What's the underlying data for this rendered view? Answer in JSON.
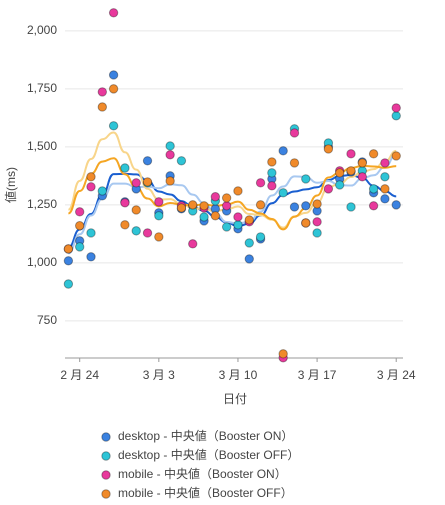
{
  "chart_data": {
    "type": "scatter",
    "y_label": "値(ms)",
    "x_label": "日付",
    "xlim": [
      -1.3,
      28.6
    ],
    "xticks": [
      {
        "value": 0,
        "label": "2 月 24"
      },
      {
        "value": 7,
        "label": "3 月 3"
      },
      {
        "value": 14,
        "label": "3 月 10"
      },
      {
        "value": 21,
        "label": "3 月 17"
      },
      {
        "value": 28,
        "label": "3 月 24"
      }
    ],
    "ylim": [
      590,
      2090
    ],
    "yticks": [
      750,
      {
        "value": 1000,
        "label": "1,000"
      },
      {
        "value": 1250,
        "label": "1,250"
      },
      {
        "value": 1500,
        "label": "1,500"
      },
      {
        "value": 1750,
        "label": "1,750"
      },
      {
        "value": 2000,
        "label": "2,000"
      }
    ],
    "grid": true,
    "x": [
      -1,
      0,
      1,
      2,
      3,
      4,
      5,
      6,
      7,
      8,
      9,
      10,
      11,
      12,
      13,
      14,
      15,
      16,
      17,
      18,
      19,
      20,
      21,
      22,
      23,
      24,
      25,
      26,
      27,
      28
    ],
    "series": [
      {
        "name": "desktop - 中央値（Booster ON）",
        "color": "#3b82e0",
        "line_color": "#1a5fd0",
        "values": [
          1009,
          1095,
          1026,
          1289,
          1810,
          1263,
          1319,
          1440,
          1216,
          1375,
          1233,
          1246,
          1181,
          1233,
          1224,
          1147,
          1017,
          1103,
          1362,
          1483,
          1241,
          1246,
          1224,
          1500,
          1362,
          1392,
          1435,
          1302,
          1276,
          1250
        ]
      },
      {
        "name": "desktop - 中央値（Booster OFF）",
        "color": "#2ec4d6",
        "line_color": "#a8c8f0",
        "values": [
          909,
          1069,
          1129,
          1310,
          1591,
          1409,
          1138,
          1345,
          1203,
          1504,
          1440,
          1224,
          1198,
          1267,
          1155,
          1164,
          1086,
          1112,
          1388,
          1302,
          1578,
          1362,
          1129,
          1517,
          1336,
          1241,
          1397,
          1319,
          1371,
          1634
        ]
      },
      {
        "name": "mobile - 中央値（Booster ON）",
        "color": "#e8399c",
        "line_color": "#f8d58a",
        "values": [
          1060,
          1220,
          1328,
          1737,
          2078,
          1259,
          1345,
          1129,
          1263,
          1466,
          1246,
          1082,
          1237,
          1285,
          1246,
          1198,
          1177,
          1345,
          1332,
          591,
          1560,
          1172,
          1177,
          1319,
          1397,
          1470,
          1371,
          1246,
          1431,
          1668
        ]
      },
      {
        "name": "mobile - 中央値（Booster OFF）",
        "color": "#f08a2a",
        "line_color": "#f5a623",
        "values": [
          1060,
          1160,
          1371,
          1672,
          1750,
          1164,
          1228,
          1349,
          1112,
          1353,
          1237,
          1250,
          1246,
          1203,
          1280,
          1310,
          1185,
          1250,
          1435,
          608,
          1431,
          1172,
          1254,
          1491,
          1388,
          1397,
          1431,
          1470,
          1319,
          1461
        ]
      }
    ]
  }
}
